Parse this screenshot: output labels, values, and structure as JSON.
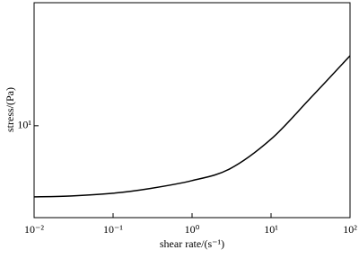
{
  "chart_data": {
    "type": "line",
    "x_scale": "log",
    "y_scale": "log",
    "x_label": "shear rate/(s⁻¹)",
    "y_label": "stress/(Pa)",
    "x": [
      0.01,
      0.03,
      0.1,
      0.3,
      1,
      3,
      10,
      30,
      100
    ],
    "series": [
      {
        "name": "stress",
        "color": "#000000",
        "values": [
          4.04,
          4.09,
          4.23,
          4.5,
          4.97,
          5.77,
          8.43,
          13.9,
          24.4
        ]
      }
    ],
    "xlim": [
      0.01,
      100
    ],
    "xticks": [
      {
        "value": 0.01,
        "label": "10⁻²"
      },
      {
        "value": 0.1,
        "label": "10⁻¹"
      },
      {
        "value": 1,
        "label": "10⁰"
      },
      {
        "value": 10,
        "label": "10¹"
      },
      {
        "value": 100,
        "label": "10²"
      }
    ],
    "ylim": [
      3.1,
      48
    ],
    "yticks": [
      {
        "value": 10,
        "label": "10¹"
      }
    ],
    "grid": false
  }
}
